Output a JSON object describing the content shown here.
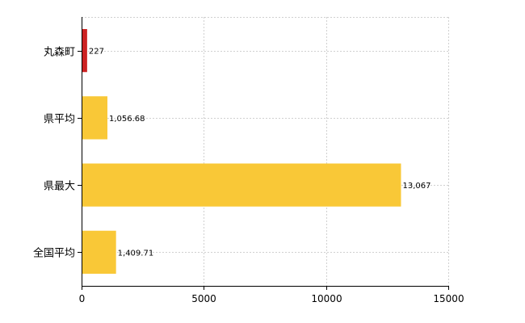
{
  "chart_data": {
    "type": "bar",
    "orientation": "horizontal",
    "categories": [
      "丸森町",
      "県平均",
      "県最大",
      "全国平均"
    ],
    "values": [
      227,
      1056.68,
      13067,
      1409.71
    ],
    "value_labels": [
      "227",
      "1,056.68",
      "13,067",
      "1,409.71"
    ],
    "bar_colors": [
      "#cc2222",
      "#f9c837",
      "#f9c837",
      "#f9c837"
    ],
    "xlim": [
      0,
      15000
    ],
    "x_ticks": [
      0,
      5000,
      10000,
      15000
    ],
    "x_tick_labels": [
      "0",
      "5000",
      "10000",
      "15000"
    ],
    "grid": true,
    "legend": "none"
  }
}
